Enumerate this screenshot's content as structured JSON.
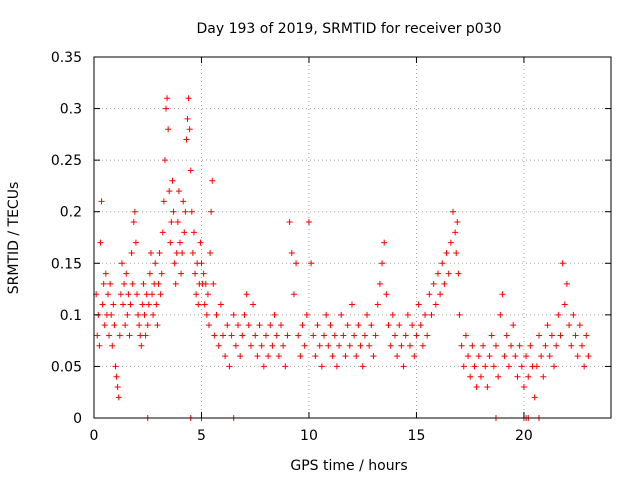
{
  "chart_data": {
    "type": "scatter",
    "title": "Day 193 of 2019, SRMTID for receiver p030",
    "xlabel": "GPS time / hours",
    "ylabel": "SRMTID / TECUs",
    "xlim": [
      0,
      24.05
    ],
    "ylim": [
      0,
      0.35
    ],
    "x_ticks": [
      0,
      5,
      10,
      15,
      20
    ],
    "x_tick_labels": [
      "0",
      "5",
      "10",
      "15",
      "20"
    ],
    "y_ticks": [
      0,
      0.05,
      0.1,
      0.15,
      0.2,
      0.25,
      0.3,
      0.35
    ],
    "y_tick_labels": [
      "0",
      "0.05",
      "0.1",
      "0.15",
      "0.2",
      "0.25",
      "0.3",
      "0.35"
    ],
    "grid": true,
    "marker": "+",
    "color": "#ff0000",
    "series": [
      {
        "name": "SRMTID",
        "points": [
          [
            0.1,
            0.12
          ],
          [
            0.15,
            0.08
          ],
          [
            0.2,
            0.1
          ],
          [
            0.25,
            0.07
          ],
          [
            0.3,
            0.17
          ],
          [
            0.35,
            0.21
          ],
          [
            0.4,
            0.11
          ],
          [
            0.45,
            0.13
          ],
          [
            0.5,
            0.09
          ],
          [
            0.55,
            0.14
          ],
          [
            0.6,
            0.1
          ],
          [
            0.65,
            0.12
          ],
          [
            0.7,
            0.08
          ],
          [
            0.75,
            0.13
          ],
          [
            0.8,
            0.1
          ],
          [
            0.85,
            0.07
          ],
          [
            0.9,
            0.11
          ],
          [
            0.95,
            0.09
          ],
          [
            1.0,
            0.05
          ],
          [
            1.05,
            0.04
          ],
          [
            1.1,
            0.03
          ],
          [
            1.15,
            0.02
          ],
          [
            1.2,
            0.08
          ],
          [
            1.25,
            0.12
          ],
          [
            1.3,
            0.15
          ],
          [
            1.35,
            0.11
          ],
          [
            1.4,
            0.13
          ],
          [
            1.45,
            0.09
          ],
          [
            1.5,
            0.14
          ],
          [
            1.55,
            0.1
          ],
          [
            1.6,
            0.12
          ],
          [
            1.65,
            0.08
          ],
          [
            1.7,
            0.11
          ],
          [
            1.75,
            0.16
          ],
          [
            1.8,
            0.13
          ],
          [
            1.85,
            0.19
          ],
          [
            1.9,
            0.2
          ],
          [
            1.95,
            0.17
          ],
          [
            2.0,
            0.12
          ],
          [
            2.05,
            0.1
          ],
          [
            2.1,
            0.09
          ],
          [
            2.15,
            0.08
          ],
          [
            2.2,
            0.07
          ],
          [
            2.25,
            0.11
          ],
          [
            2.3,
            0.13
          ],
          [
            2.35,
            0.1
          ],
          [
            2.4,
            0.08
          ],
          [
            2.45,
            0.12
          ],
          [
            2.5,
            0.09
          ],
          [
            2.55,
            0.11
          ],
          [
            2.6,
            0.14
          ],
          [
            2.65,
            0.16
          ],
          [
            2.7,
            0.12
          ],
          [
            2.75,
            0.1
          ],
          [
            2.8,
            0.13
          ],
          [
            2.85,
            0.15
          ],
          [
            2.9,
            0.11
          ],
          [
            2.95,
            0.09
          ],
          [
            3.0,
            0.13
          ],
          [
            3.05,
            0.16
          ],
          [
            3.1,
            0.12
          ],
          [
            3.15,
            0.14
          ],
          [
            3.2,
            0.18
          ],
          [
            3.25,
            0.21
          ],
          [
            3.3,
            0.25
          ],
          [
            3.35,
            0.3
          ],
          [
            3.4,
            0.31
          ],
          [
            3.45,
            0.28
          ],
          [
            3.5,
            0.22
          ],
          [
            3.55,
            0.17
          ],
          [
            3.6,
            0.19
          ],
          [
            3.65,
            0.23
          ],
          [
            3.7,
            0.2
          ],
          [
            3.75,
            0.15
          ],
          [
            3.8,
            0.13
          ],
          [
            3.85,
            0.16
          ],
          [
            3.9,
            0.19
          ],
          [
            3.95,
            0.22
          ],
          [
            4.0,
            0.17
          ],
          [
            4.05,
            0.14
          ],
          [
            4.1,
            0.16
          ],
          [
            4.15,
            0.21
          ],
          [
            4.2,
            0.18
          ],
          [
            4.25,
            0.2
          ],
          [
            4.3,
            0.27
          ],
          [
            4.35,
            0.29
          ],
          [
            4.4,
            0.31
          ],
          [
            4.45,
            0.28
          ],
          [
            4.5,
            0.24
          ],
          [
            4.55,
            0.2
          ],
          [
            4.6,
            0.16
          ],
          [
            4.65,
            0.18
          ],
          [
            4.7,
            0.14
          ],
          [
            4.75,
            0.12
          ],
          [
            4.8,
            0.15
          ],
          [
            4.85,
            0.11
          ],
          [
            4.9,
            0.13
          ],
          [
            4.95,
            0.17
          ],
          [
            5.0,
            0.15
          ],
          [
            5.05,
            0.13
          ],
          [
            5.1,
            0.14
          ],
          [
            5.15,
            0.11
          ],
          [
            5.2,
            0.13
          ],
          [
            5.25,
            0.1
          ],
          [
            5.3,
            0.12
          ],
          [
            5.35,
            0.09
          ],
          [
            5.4,
            0.16
          ],
          [
            5.45,
            0.2
          ],
          [
            5.5,
            0.23
          ],
          [
            5.55,
            0.13
          ],
          [
            5.6,
            0.08
          ],
          [
            5.7,
            0.1
          ],
          [
            5.8,
            0.07
          ],
          [
            5.9,
            0.11
          ],
          [
            6.0,
            0.08
          ],
          [
            6.1,
            0.06
          ],
          [
            6.2,
            0.09
          ],
          [
            6.3,
            0.05
          ],
          [
            6.4,
            0.08
          ],
          [
            6.5,
            0.1
          ],
          [
            6.6,
            0.07
          ],
          [
            6.7,
            0.09
          ],
          [
            6.8,
            0.06
          ],
          [
            6.9,
            0.08
          ],
          [
            7.0,
            0.1
          ],
          [
            7.1,
            0.12
          ],
          [
            7.2,
            0.09
          ],
          [
            7.3,
            0.07
          ],
          [
            7.4,
            0.11
          ],
          [
            7.5,
            0.08
          ],
          [
            7.6,
            0.06
          ],
          [
            7.7,
            0.09
          ],
          [
            7.8,
            0.07
          ],
          [
            7.9,
            0.05
          ],
          [
            8.0,
            0.08
          ],
          [
            8.1,
            0.06
          ],
          [
            8.2,
            0.09
          ],
          [
            8.3,
            0.07
          ],
          [
            8.4,
            0.1
          ],
          [
            8.5,
            0.08
          ],
          [
            8.6,
            0.06
          ],
          [
            8.7,
            0.09
          ],
          [
            8.8,
            0.07
          ],
          [
            8.9,
            0.05
          ],
          [
            9.0,
            0.08
          ],
          [
            9.1,
            0.19
          ],
          [
            9.2,
            0.16
          ],
          [
            9.3,
            0.12
          ],
          [
            9.4,
            0.15
          ],
          [
            9.5,
            0.08
          ],
          [
            9.6,
            0.06
          ],
          [
            9.7,
            0.09
          ],
          [
            9.8,
            0.07
          ],
          [
            9.9,
            0.1
          ],
          [
            10.0,
            0.19
          ],
          [
            10.1,
            0.15
          ],
          [
            10.2,
            0.08
          ],
          [
            10.3,
            0.06
          ],
          [
            10.4,
            0.09
          ],
          [
            10.5,
            0.07
          ],
          [
            10.6,
            0.05
          ],
          [
            10.7,
            0.08
          ],
          [
            10.8,
            0.1
          ],
          [
            10.9,
            0.07
          ],
          [
            11.0,
            0.09
          ],
          [
            11.1,
            0.06
          ],
          [
            11.2,
            0.08
          ],
          [
            11.3,
            0.05
          ],
          [
            11.4,
            0.07
          ],
          [
            11.5,
            0.1
          ],
          [
            11.6,
            0.08
          ],
          [
            11.7,
            0.06
          ],
          [
            11.8,
            0.09
          ],
          [
            11.9,
            0.07
          ],
          [
            12.0,
            0.11
          ],
          [
            12.1,
            0.08
          ],
          [
            12.2,
            0.06
          ],
          [
            12.3,
            0.09
          ],
          [
            12.4,
            0.07
          ],
          [
            12.5,
            0.05
          ],
          [
            12.6,
            0.08
          ],
          [
            12.7,
            0.1
          ],
          [
            12.8,
            0.07
          ],
          [
            12.9,
            0.09
          ],
          [
            13.0,
            0.06
          ],
          [
            13.1,
            0.08
          ],
          [
            13.2,
            0.11
          ],
          [
            13.3,
            0.13
          ],
          [
            13.4,
            0.15
          ],
          [
            13.5,
            0.17
          ],
          [
            13.6,
            0.12
          ],
          [
            13.7,
            0.09
          ],
          [
            13.8,
            0.07
          ],
          [
            13.9,
            0.1
          ],
          [
            14.0,
            0.08
          ],
          [
            14.1,
            0.06
          ],
          [
            14.2,
            0.09
          ],
          [
            14.3,
            0.07
          ],
          [
            14.4,
            0.05
          ],
          [
            14.5,
            0.08
          ],
          [
            14.6,
            0.1
          ],
          [
            14.7,
            0.07
          ],
          [
            14.8,
            0.09
          ],
          [
            14.9,
            0.06
          ],
          [
            15.0,
            0.08
          ],
          [
            15.1,
            0.11
          ],
          [
            15.2,
            0.09
          ],
          [
            15.3,
            0.07
          ],
          [
            15.4,
            0.1
          ],
          [
            15.5,
            0.08
          ],
          [
            15.6,
            0.12
          ],
          [
            15.7,
            0.1
          ],
          [
            15.8,
            0.13
          ],
          [
            15.9,
            0.11
          ],
          [
            16.0,
            0.14
          ],
          [
            16.1,
            0.12
          ],
          [
            16.2,
            0.15
          ],
          [
            16.3,
            0.13
          ],
          [
            16.4,
            0.16
          ],
          [
            16.5,
            0.14
          ],
          [
            16.6,
            0.17
          ],
          [
            16.7,
            0.2
          ],
          [
            16.8,
            0.18
          ],
          [
            16.85,
            0.16
          ],
          [
            16.9,
            0.19
          ],
          [
            16.95,
            0.14
          ],
          [
            17.0,
            0.1
          ],
          [
            17.1,
            0.07
          ],
          [
            17.2,
            0.05
          ],
          [
            17.3,
            0.08
          ],
          [
            17.4,
            0.06
          ],
          [
            17.5,
            0.04
          ],
          [
            17.6,
            0.07
          ],
          [
            17.7,
            0.05
          ],
          [
            17.8,
            0.03
          ],
          [
            17.9,
            0.06
          ],
          [
            18.0,
            0.04
          ],
          [
            18.1,
            0.07
          ],
          [
            18.2,
            0.05
          ],
          [
            18.3,
            0.03
          ],
          [
            18.4,
            0.06
          ],
          [
            18.5,
            0.08
          ],
          [
            18.6,
            0.05
          ],
          [
            18.7,
            0.07
          ],
          [
            18.8,
            0.04
          ],
          [
            18.9,
            0.1
          ],
          [
            19.0,
            0.12
          ],
          [
            19.1,
            0.06
          ],
          [
            19.2,
            0.08
          ],
          [
            19.3,
            0.05
          ],
          [
            19.4,
            0.07
          ],
          [
            19.5,
            0.09
          ],
          [
            19.6,
            0.06
          ],
          [
            19.7,
            0.04
          ],
          [
            19.8,
            0.07
          ],
          [
            19.9,
            0.05
          ],
          [
            20.0,
            0.03
          ],
          [
            20.1,
            0.06
          ],
          [
            20.2,
            0.04
          ],
          [
            20.3,
            0.07
          ],
          [
            20.4,
            0.05
          ],
          [
            20.5,
            0.02
          ],
          [
            20.6,
            0.05
          ],
          [
            20.7,
            0.08
          ],
          [
            20.8,
            0.06
          ],
          [
            20.9,
            0.04
          ],
          [
            21.0,
            0.07
          ],
          [
            21.1,
            0.09
          ],
          [
            21.2,
            0.06
          ],
          [
            21.3,
            0.08
          ],
          [
            21.4,
            0.05
          ],
          [
            21.5,
            0.07
          ],
          [
            21.6,
            0.1
          ],
          [
            21.7,
            0.08
          ],
          [
            21.8,
            0.15
          ],
          [
            21.9,
            0.11
          ],
          [
            22.0,
            0.13
          ],
          [
            22.1,
            0.09
          ],
          [
            22.2,
            0.07
          ],
          [
            22.3,
            0.1
          ],
          [
            22.4,
            0.08
          ],
          [
            22.5,
            0.06
          ],
          [
            22.6,
            0.09
          ],
          [
            22.7,
            0.07
          ],
          [
            22.8,
            0.05
          ],
          [
            22.9,
            0.08
          ],
          [
            23.0,
            0.06
          ],
          [
            2.5,
            0.0
          ],
          [
            4.5,
            0.0
          ],
          [
            5.0,
            0.0
          ],
          [
            6.5,
            0.0
          ],
          [
            18.7,
            0.0
          ],
          [
            20.0,
            0.0
          ],
          [
            20.1,
            0.0
          ],
          [
            20.2,
            0.0
          ],
          [
            20.7,
            0.0
          ]
        ]
      }
    ]
  }
}
